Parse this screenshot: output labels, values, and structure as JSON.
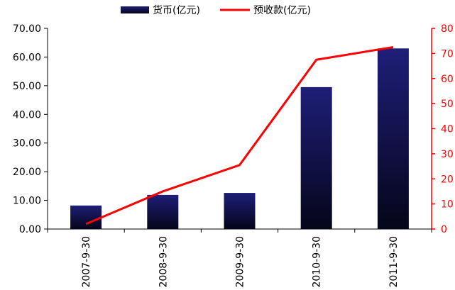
{
  "chart_data": {
    "type": "bar",
    "categories": [
      "2007-9-30",
      "2008-9-30",
      "2009-9-30",
      "2010-9-30",
      "2011-9-30"
    ],
    "series": [
      {
        "name": "货币(亿元)",
        "type": "bar",
        "axis": "left",
        "color": "#1a1a6e",
        "values": [
          8.2,
          11.9,
          12.6,
          49.5,
          63.0
        ]
      },
      {
        "name": "预收款(亿元)",
        "type": "line",
        "axis": "right",
        "color": "#ff0000",
        "values": [
          2,
          15,
          25.5,
          67.5,
          72.5
        ]
      }
    ],
    "y_left": {
      "ylim": [
        0,
        70
      ],
      "ticks": [
        "0.00",
        "10.00",
        "20.00",
        "30.00",
        "40.00",
        "50.00",
        "60.00",
        "70.00"
      ]
    },
    "y_right": {
      "ylim": [
        0,
        80
      ],
      "ticks": [
        "0",
        "10",
        "20",
        "30",
        "40",
        "50",
        "60",
        "70",
        "80"
      ],
      "color": "#ff0000"
    },
    "legend": {
      "position": "top"
    },
    "grid": false
  }
}
